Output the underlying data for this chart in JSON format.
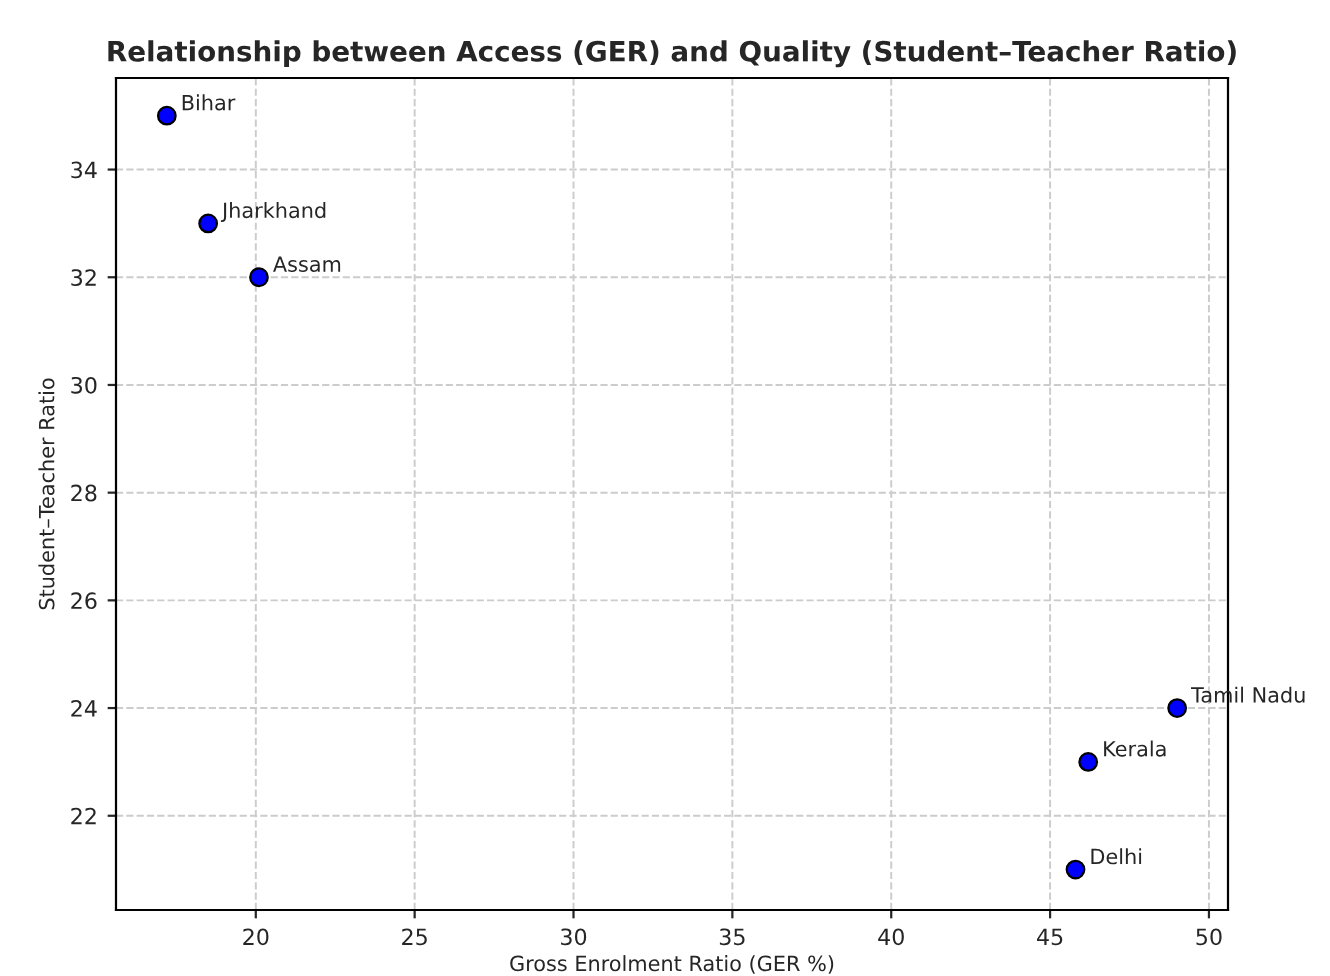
{
  "chart_data": {
    "type": "scatter",
    "title": "Relationship between Access (GER) and Quality (Student–Teacher Ratio)",
    "xlabel": "Gross Enrolment Ratio (GER %)",
    "ylabel": "Student–Teacher Ratio",
    "series": [
      {
        "color": "#0000ff",
        "x": [
          17.2,
          18.5,
          20.1,
          49.0,
          46.2,
          45.8
        ],
        "values": [
          35,
          33,
          32,
          24,
          23,
          21
        ]
      }
    ],
    "annotations": [
      {
        "text": "Bihar",
        "x": 17.2,
        "y": 35
      },
      {
        "text": "Jharkhand",
        "x": 18.5,
        "y": 33
      },
      {
        "text": "Assam",
        "x": 20.1,
        "y": 32
      },
      {
        "text": "Tamil Nadu",
        "x": 49.0,
        "y": 24
      },
      {
        "text": "Kerala",
        "x": 46.2,
        "y": 23
      },
      {
        "text": "Delhi",
        "x": 45.8,
        "y": 21
      }
    ],
    "xlim": [
      15.6,
      50.6
    ],
    "ylim": [
      20.25,
      35.7
    ],
    "xticks": [
      20,
      25,
      30,
      35,
      40,
      45,
      50
    ],
    "yticks": [
      22,
      24,
      26,
      28,
      30,
      32,
      34
    ],
    "grid": true,
    "marker": "circle"
  }
}
